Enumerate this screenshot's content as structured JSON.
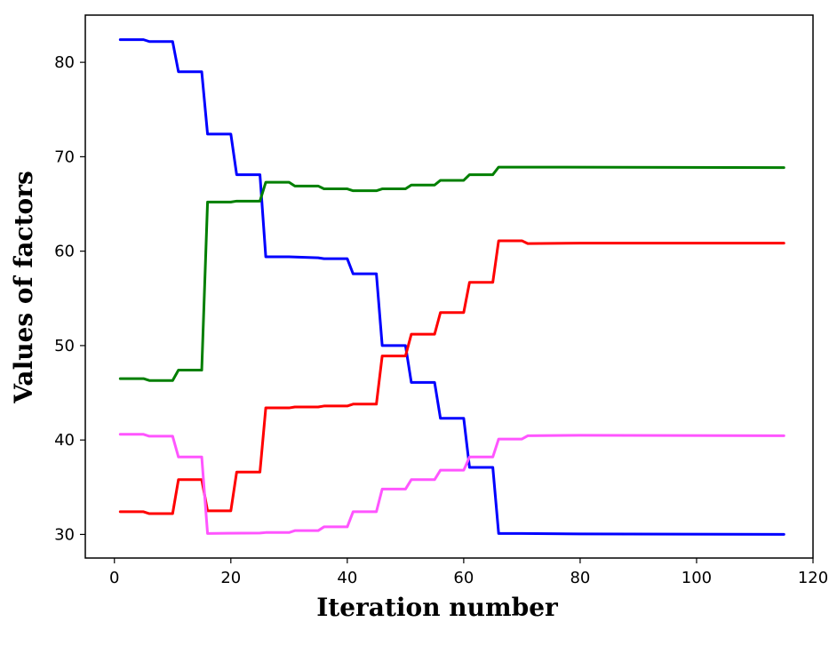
{
  "chart_data": {
    "type": "line",
    "title": "",
    "xlabel": "Iteration number",
    "ylabel": "Values of factors",
    "xlim": [
      -5,
      120
    ],
    "ylim": [
      27.5,
      85
    ],
    "xticks": [
      0,
      20,
      40,
      60,
      80,
      100,
      120
    ],
    "yticks": [
      30,
      40,
      50,
      60,
      70,
      80
    ],
    "grid": false,
    "legend": "none",
    "series": [
      {
        "color": "#0000ff",
        "points": [
          [
            1,
            82.4
          ],
          [
            5,
            82.4
          ],
          [
            6,
            82.2
          ],
          [
            10,
            82.2
          ],
          [
            11,
            79.0
          ],
          [
            15,
            79.0
          ],
          [
            16,
            72.4
          ],
          [
            20,
            72.4
          ],
          [
            21,
            68.1
          ],
          [
            25,
            68.1
          ],
          [
            26,
            59.4
          ],
          [
            30,
            59.4
          ],
          [
            35,
            59.3
          ],
          [
            36,
            59.2
          ],
          [
            40,
            59.2
          ],
          [
            41,
            57.6
          ],
          [
            45,
            57.6
          ],
          [
            46,
            50.0
          ],
          [
            50,
            50.0
          ],
          [
            51,
            46.1
          ],
          [
            55,
            46.1
          ],
          [
            56,
            42.3
          ],
          [
            60,
            42.3
          ],
          [
            61,
            37.1
          ],
          [
            65,
            37.1
          ],
          [
            66,
            30.1
          ],
          [
            70,
            30.1
          ],
          [
            80,
            30.05
          ],
          [
            115,
            30.0
          ]
        ]
      },
      {
        "color": "#007f00",
        "points": [
          [
            1,
            46.5
          ],
          [
            5,
            46.5
          ],
          [
            6,
            46.3
          ],
          [
            10,
            46.3
          ],
          [
            11,
            47.4
          ],
          [
            15,
            47.4
          ],
          [
            16,
            65.2
          ],
          [
            20,
            65.2
          ],
          [
            21,
            65.3
          ],
          [
            25,
            65.3
          ],
          [
            26,
            67.3
          ],
          [
            30,
            67.3
          ],
          [
            31,
            66.9
          ],
          [
            35,
            66.9
          ],
          [
            36,
            66.6
          ],
          [
            40,
            66.6
          ],
          [
            41,
            66.4
          ],
          [
            45,
            66.4
          ],
          [
            46,
            66.6
          ],
          [
            50,
            66.6
          ],
          [
            51,
            67.0
          ],
          [
            55,
            67.0
          ],
          [
            56,
            67.5
          ],
          [
            60,
            67.5
          ],
          [
            61,
            68.1
          ],
          [
            65,
            68.1
          ],
          [
            66,
            68.9
          ],
          [
            75,
            68.9
          ],
          [
            115,
            68.85
          ]
        ]
      },
      {
        "color": "#ff0000",
        "points": [
          [
            1,
            32.4
          ],
          [
            5,
            32.4
          ],
          [
            6,
            32.2
          ],
          [
            10,
            32.2
          ],
          [
            11,
            35.8
          ],
          [
            15,
            35.8
          ],
          [
            16,
            32.5
          ],
          [
            20,
            32.5
          ],
          [
            21,
            36.6
          ],
          [
            25,
            36.6
          ],
          [
            26,
            43.4
          ],
          [
            30,
            43.4
          ],
          [
            31,
            43.5
          ],
          [
            35,
            43.5
          ],
          [
            36,
            43.6
          ],
          [
            40,
            43.6
          ],
          [
            41,
            43.8
          ],
          [
            45,
            43.8
          ],
          [
            46,
            48.9
          ],
          [
            50,
            48.9
          ],
          [
            51,
            51.2
          ],
          [
            55,
            51.2
          ],
          [
            56,
            53.5
          ],
          [
            60,
            53.5
          ],
          [
            61,
            56.7
          ],
          [
            65,
            56.7
          ],
          [
            66,
            61.1
          ],
          [
            70,
            61.1
          ],
          [
            71,
            60.8
          ],
          [
            80,
            60.85
          ],
          [
            115,
            60.85
          ]
        ]
      },
      {
        "color": "#ff55ff",
        "points": [
          [
            1,
            40.6
          ],
          [
            5,
            40.6
          ],
          [
            6,
            40.4
          ],
          [
            10,
            40.4
          ],
          [
            11,
            38.2
          ],
          [
            15,
            38.2
          ],
          [
            16,
            30.1
          ],
          [
            25,
            30.15
          ],
          [
            26,
            30.2
          ],
          [
            30,
            30.2
          ],
          [
            31,
            30.4
          ],
          [
            35,
            30.4
          ],
          [
            36,
            30.8
          ],
          [
            40,
            30.8
          ],
          [
            41,
            32.4
          ],
          [
            45,
            32.4
          ],
          [
            46,
            34.8
          ],
          [
            50,
            34.8
          ],
          [
            51,
            35.8
          ],
          [
            55,
            35.8
          ],
          [
            56,
            36.8
          ],
          [
            60,
            36.8
          ],
          [
            61,
            38.2
          ],
          [
            65,
            38.2
          ],
          [
            66,
            40.1
          ],
          [
            70,
            40.1
          ],
          [
            71,
            40.45
          ],
          [
            80,
            40.5
          ],
          [
            115,
            40.45
          ]
        ]
      }
    ]
  }
}
